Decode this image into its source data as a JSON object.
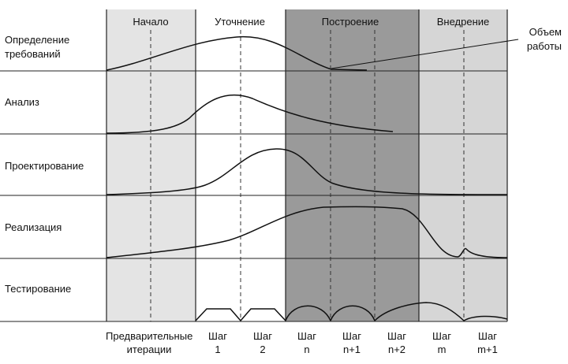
{
  "phases": [
    {
      "label": "Начало",
      "fill": "#e4e4e4"
    },
    {
      "label": "Уточнение",
      "fill": "#ffffff"
    },
    {
      "label": "Построение",
      "fill": "#9a9a9a"
    },
    {
      "label": "Внедрение",
      "fill": "#d6d6d6"
    }
  ],
  "disciplines": [
    {
      "line1": "Определение",
      "line2": "требований"
    },
    {
      "line1": "Анализ",
      "line2": ""
    },
    {
      "line1": "Проектирование",
      "line2": ""
    },
    {
      "line1": "Реализация",
      "line2": ""
    },
    {
      "line1": "Тестирование",
      "line2": ""
    }
  ],
  "iterations": [
    {
      "line1": "Предварительные",
      "line2": "итерации"
    },
    {
      "line1": "Шаг",
      "line2": "1"
    },
    {
      "line1": "Шаг",
      "line2": "2"
    },
    {
      "line1": "Шаг",
      "line2": "n"
    },
    {
      "line1": "Шаг",
      "line2": "n+1"
    },
    {
      "line1": "Шаг",
      "line2": "n+2"
    },
    {
      "line1": "Шаг",
      "line2": "m"
    },
    {
      "line1": "Шаг",
      "line2": "m+1"
    }
  ],
  "callout": {
    "line1": "Объем",
    "line2": "работы"
  },
  "colors": {
    "line": "#111111",
    "divider": "#222222",
    "dashed": "#333333"
  }
}
